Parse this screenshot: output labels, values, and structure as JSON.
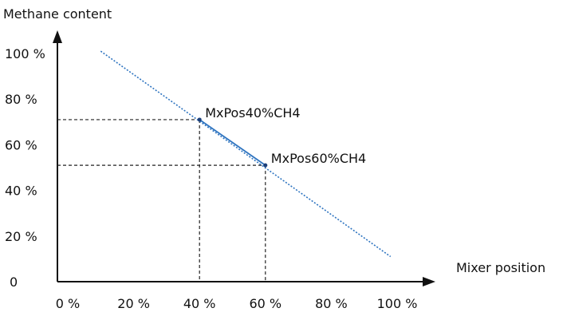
{
  "chart_data": {
    "type": "line",
    "title": "",
    "ylabel": "Methane content",
    "xlabel": "Mixer position",
    "x_ticks": [
      "0 %",
      "20 %",
      "40 %",
      "60 %",
      "80 %",
      "100 %"
    ],
    "y_ticks": [
      "0",
      "20 %",
      "40 %",
      "60 %",
      "80 %",
      "100 %"
    ],
    "xlim": [
      0,
      100
    ],
    "ylim": [
      0,
      100
    ],
    "grid": false,
    "series": [
      {
        "style": "dotted",
        "color": "#2e74c0",
        "points": [
          {
            "x": 10,
            "y": 101
          },
          {
            "x": 98,
            "y": 11
          }
        ]
      },
      {
        "style": "solid",
        "color": "#2e74c0",
        "points": [
          {
            "x": 40,
            "y": 71
          },
          {
            "x": 60,
            "y": 51
          }
        ]
      }
    ],
    "annotations": [
      {
        "label": "MxPos40%CH4",
        "x": 40,
        "y": 71
      },
      {
        "label": "MxPos60%CH4",
        "x": 60,
        "y": 51
      }
    ],
    "colors": {
      "axis": "#111111",
      "guide": "#222222",
      "line": "#2e74c0"
    }
  }
}
